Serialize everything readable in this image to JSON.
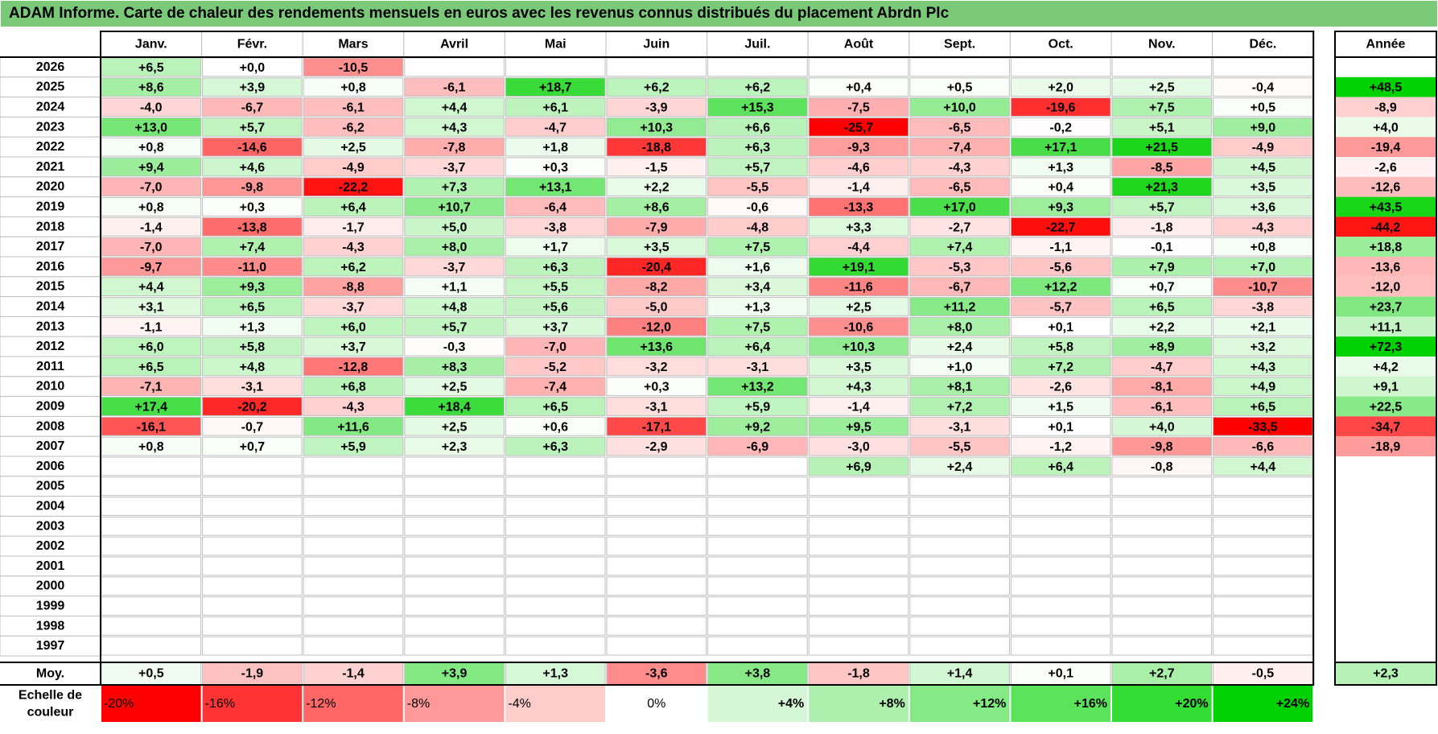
{
  "title": "ADAM Informe. Carte de chaleur des rendements mensuels en euros avec les revenus connus distribués du placement Abrdn Plc",
  "chart_data": {
    "type": "heatmap",
    "months": [
      "Janv.",
      "Févr.",
      "Mars",
      "Avril",
      "Mai",
      "Juin",
      "Juil.",
      "Août",
      "Sept.",
      "Oct.",
      "Nov.",
      "Déc."
    ],
    "year_header": "Année",
    "avg_label": "Moy.",
    "rows": [
      {
        "year": "2026",
        "values": [
          "+6,5",
          "+0,0",
          "-10,5",
          "",
          "",
          "",
          "",
          "",
          "",
          "",
          "",
          ""
        ],
        "annual": ""
      },
      {
        "year": "2025",
        "values": [
          "+8,6",
          "+3,9",
          "+0,8",
          "-6,1",
          "+18,7",
          "+6,2",
          "+6,2",
          "+0,4",
          "+0,5",
          "+2,0",
          "+2,5",
          "-0,4"
        ],
        "annual": "+48,5"
      },
      {
        "year": "2024",
        "values": [
          "-4,0",
          "-6,7",
          "-6,1",
          "+4,4",
          "+6,1",
          "-3,9",
          "+15,3",
          "-7,5",
          "+10,0",
          "-19,6",
          "+7,5",
          "+0,5"
        ],
        "annual": "-8,9"
      },
      {
        "year": "2023",
        "values": [
          "+13,0",
          "+5,7",
          "-6,2",
          "+4,3",
          "-4,7",
          "+10,3",
          "+6,6",
          "-25,7",
          "-6,5",
          "-0,2",
          "+5,1",
          "+9,0"
        ],
        "annual": "+4,0"
      },
      {
        "year": "2022",
        "values": [
          "+0,8",
          "-14,6",
          "+2,5",
          "-7,8",
          "+1,8",
          "-18,8",
          "+6,3",
          "-9,3",
          "-7,4",
          "+17,1",
          "+21,5",
          "-4,9"
        ],
        "annual": "-19,4"
      },
      {
        "year": "2021",
        "values": [
          "+9,4",
          "+4,6",
          "-4,9",
          "-3,7",
          "+0,3",
          "-1,5",
          "+5,7",
          "-4,6",
          "-4,3",
          "+1,3",
          "-8,5",
          "+4,5"
        ],
        "annual": "-2,6"
      },
      {
        "year": "2020",
        "values": [
          "-7,0",
          "-9,8",
          "-22,2",
          "+7,3",
          "+13,1",
          "+2,2",
          "-5,5",
          "-1,4",
          "-6,5",
          "+0,4",
          "+21,3",
          "+3,5"
        ],
        "annual": "-12,6"
      },
      {
        "year": "2019",
        "values": [
          "+0,8",
          "+0,3",
          "+6,4",
          "+10,7",
          "-6,4",
          "+8,6",
          "-0,6",
          "-13,3",
          "+17,0",
          "+9,3",
          "+5,7",
          "+3,6"
        ],
        "annual": "+43,5"
      },
      {
        "year": "2018",
        "values": [
          "-1,4",
          "-13,8",
          "-1,7",
          "+5,0",
          "-3,8",
          "-7,9",
          "-4,8",
          "+3,3",
          "-2,7",
          "-22,7",
          "-1,8",
          "-4,3"
        ],
        "annual": "-44,2"
      },
      {
        "year": "2017",
        "values": [
          "-7,0",
          "+7,4",
          "-4,3",
          "+8,0",
          "+1,7",
          "+3,5",
          "+7,5",
          "-4,4",
          "+7,4",
          "-1,1",
          "-0,1",
          "+0,8"
        ],
        "annual": "+18,8"
      },
      {
        "year": "2016",
        "values": [
          "-9,7",
          "-11,0",
          "+6,2",
          "-3,7",
          "+6,3",
          "-20,4",
          "+1,6",
          "+19,1",
          "-5,3",
          "-5,6",
          "+7,9",
          "+7,0"
        ],
        "annual": "-13,6"
      },
      {
        "year": "2015",
        "values": [
          "+4,4",
          "+9,3",
          "-8,8",
          "+1,1",
          "+5,5",
          "-8,2",
          "+3,4",
          "-11,6",
          "-6,7",
          "+12,2",
          "+0,7",
          "-10,7"
        ],
        "annual": "-12,0"
      },
      {
        "year": "2014",
        "values": [
          "+3,1",
          "+6,5",
          "-3,7",
          "+4,8",
          "+5,6",
          "-5,0",
          "+1,3",
          "+2,5",
          "+11,2",
          "-5,7",
          "+6,5",
          "-3,8"
        ],
        "annual": "+23,7"
      },
      {
        "year": "2013",
        "values": [
          "-1,1",
          "+1,3",
          "+6,0",
          "+5,7",
          "+3,7",
          "-12,0",
          "+7,5",
          "-10,6",
          "+8,0",
          "+0,1",
          "+2,2",
          "+2,1"
        ],
        "annual": "+11,1"
      },
      {
        "year": "2012",
        "values": [
          "+6,0",
          "+5,8",
          "+3,7",
          "-0,3",
          "-7,0",
          "+13,6",
          "+6,4",
          "+10,3",
          "+2,4",
          "+5,8",
          "+8,9",
          "+3,2"
        ],
        "annual": "+72,3"
      },
      {
        "year": "2011",
        "values": [
          "+6,5",
          "+4,8",
          "-12,8",
          "+8,3",
          "-5,2",
          "-3,2",
          "-3,1",
          "+3,5",
          "+1,0",
          "+7,2",
          "-4,7",
          "+4,3"
        ],
        "annual": "+4,2"
      },
      {
        "year": "2010",
        "values": [
          "-7,1",
          "-3,1",
          "+6,8",
          "+2,5",
          "-7,4",
          "+0,3",
          "+13,2",
          "+4,3",
          "+8,1",
          "-2,6",
          "-8,1",
          "+4,9"
        ],
        "annual": "+9,1"
      },
      {
        "year": "2009",
        "values": [
          "+17,4",
          "-20,2",
          "-4,3",
          "+18,4",
          "+6,5",
          "-3,1",
          "+5,9",
          "-1,4",
          "+7,2",
          "+1,5",
          "-6,1",
          "+6,5"
        ],
        "annual": "+22,5"
      },
      {
        "year": "2008",
        "values": [
          "-16,1",
          "-0,7",
          "+11,6",
          "+2,5",
          "+0,6",
          "-17,1",
          "+9,2",
          "+9,5",
          "-3,1",
          "+0,1",
          "+4,0",
          "-33,5"
        ],
        "annual": "-34,7"
      },
      {
        "year": "2007",
        "values": [
          "+0,8",
          "+0,7",
          "+5,9",
          "+2,3",
          "+6,3",
          "-2,9",
          "-6,9",
          "-3,0",
          "-5,5",
          "-1,2",
          "-9,8",
          "-6,6"
        ],
        "annual": "-18,9"
      },
      {
        "year": "2006",
        "values": [
          "",
          "",
          "",
          "",
          "",
          "",
          "",
          "+6,9",
          "+2,4",
          "+6,4",
          "-0,8",
          "+4,4"
        ],
        "annual": ""
      },
      {
        "year": "2005",
        "values": [
          "",
          "",
          "",
          "",
          "",
          "",
          "",
          "",
          "",
          "",
          "",
          ""
        ],
        "annual": ""
      },
      {
        "year": "2004",
        "values": [
          "",
          "",
          "",
          "",
          "",
          "",
          "",
          "",
          "",
          "",
          "",
          ""
        ],
        "annual": ""
      },
      {
        "year": "2003",
        "values": [
          "",
          "",
          "",
          "",
          "",
          "",
          "",
          "",
          "",
          "",
          "",
          ""
        ],
        "annual": ""
      },
      {
        "year": "2002",
        "values": [
          "",
          "",
          "",
          "",
          "",
          "",
          "",
          "",
          "",
          "",
          "",
          ""
        ],
        "annual": ""
      },
      {
        "year": "2001",
        "values": [
          "",
          "",
          "",
          "",
          "",
          "",
          "",
          "",
          "",
          "",
          "",
          ""
        ],
        "annual": ""
      },
      {
        "year": "2000",
        "values": [
          "",
          "",
          "",
          "",
          "",
          "",
          "",
          "",
          "",
          "",
          "",
          ""
        ],
        "annual": ""
      },
      {
        "year": "1999",
        "values": [
          "",
          "",
          "",
          "",
          "",
          "",
          "",
          "",
          "",
          "",
          "",
          ""
        ],
        "annual": ""
      },
      {
        "year": "1998",
        "values": [
          "",
          "",
          "",
          "",
          "",
          "",
          "",
          "",
          "",
          "",
          "",
          ""
        ],
        "annual": ""
      },
      {
        "year": "1997",
        "values": [
          "",
          "",
          "",
          "",
          "",
          "",
          "",
          "",
          "",
          "",
          "",
          ""
        ],
        "annual": ""
      }
    ],
    "averages": [
      "+0,5",
      "-1,9",
      "-1,4",
      "+3,9",
      "+1,3",
      "-3,6",
      "+3,8",
      "-1,8",
      "+1,4",
      "+0,1",
      "+2,7",
      "-0,5"
    ],
    "average_annual": "+2,3",
    "scale": {
      "label_line1": "Echelle de",
      "label_line2": "couleur",
      "steps": [
        {
          "label": "-20%",
          "value": -20,
          "color": "#ff0000"
        },
        {
          "label": "-16%",
          "value": -16,
          "color": "#ff3333"
        },
        {
          "label": "-12%",
          "value": -12,
          "color": "#ff6666"
        },
        {
          "label": "-8%",
          "value": -8,
          "color": "#ff9999"
        },
        {
          "label": "-4%",
          "value": -4,
          "color": "#ffcccc"
        },
        {
          "label": "0%",
          "value": 0,
          "color": "#ffffff"
        },
        {
          "label": "+4%",
          "value": 4,
          "color": "#d6f7d6"
        },
        {
          "label": "+8%",
          "value": 8,
          "color": "#adf0ad"
        },
        {
          "label": "+12%",
          "value": 12,
          "color": "#85ea85"
        },
        {
          "label": "+16%",
          "value": 16,
          "color": "#5ce35c"
        },
        {
          "label": "+20%",
          "value": 20,
          "color": "#33dd33"
        },
        {
          "label": "+24%",
          "value": 24,
          "color": "#00d100"
        }
      ]
    },
    "colors": {
      "title_bg": "#79c979",
      "negative_max": "#ff0000",
      "positive_max": "#00d100",
      "neutral": "#ffffff",
      "grid": "#bfbfbf",
      "border": "#000000"
    }
  }
}
